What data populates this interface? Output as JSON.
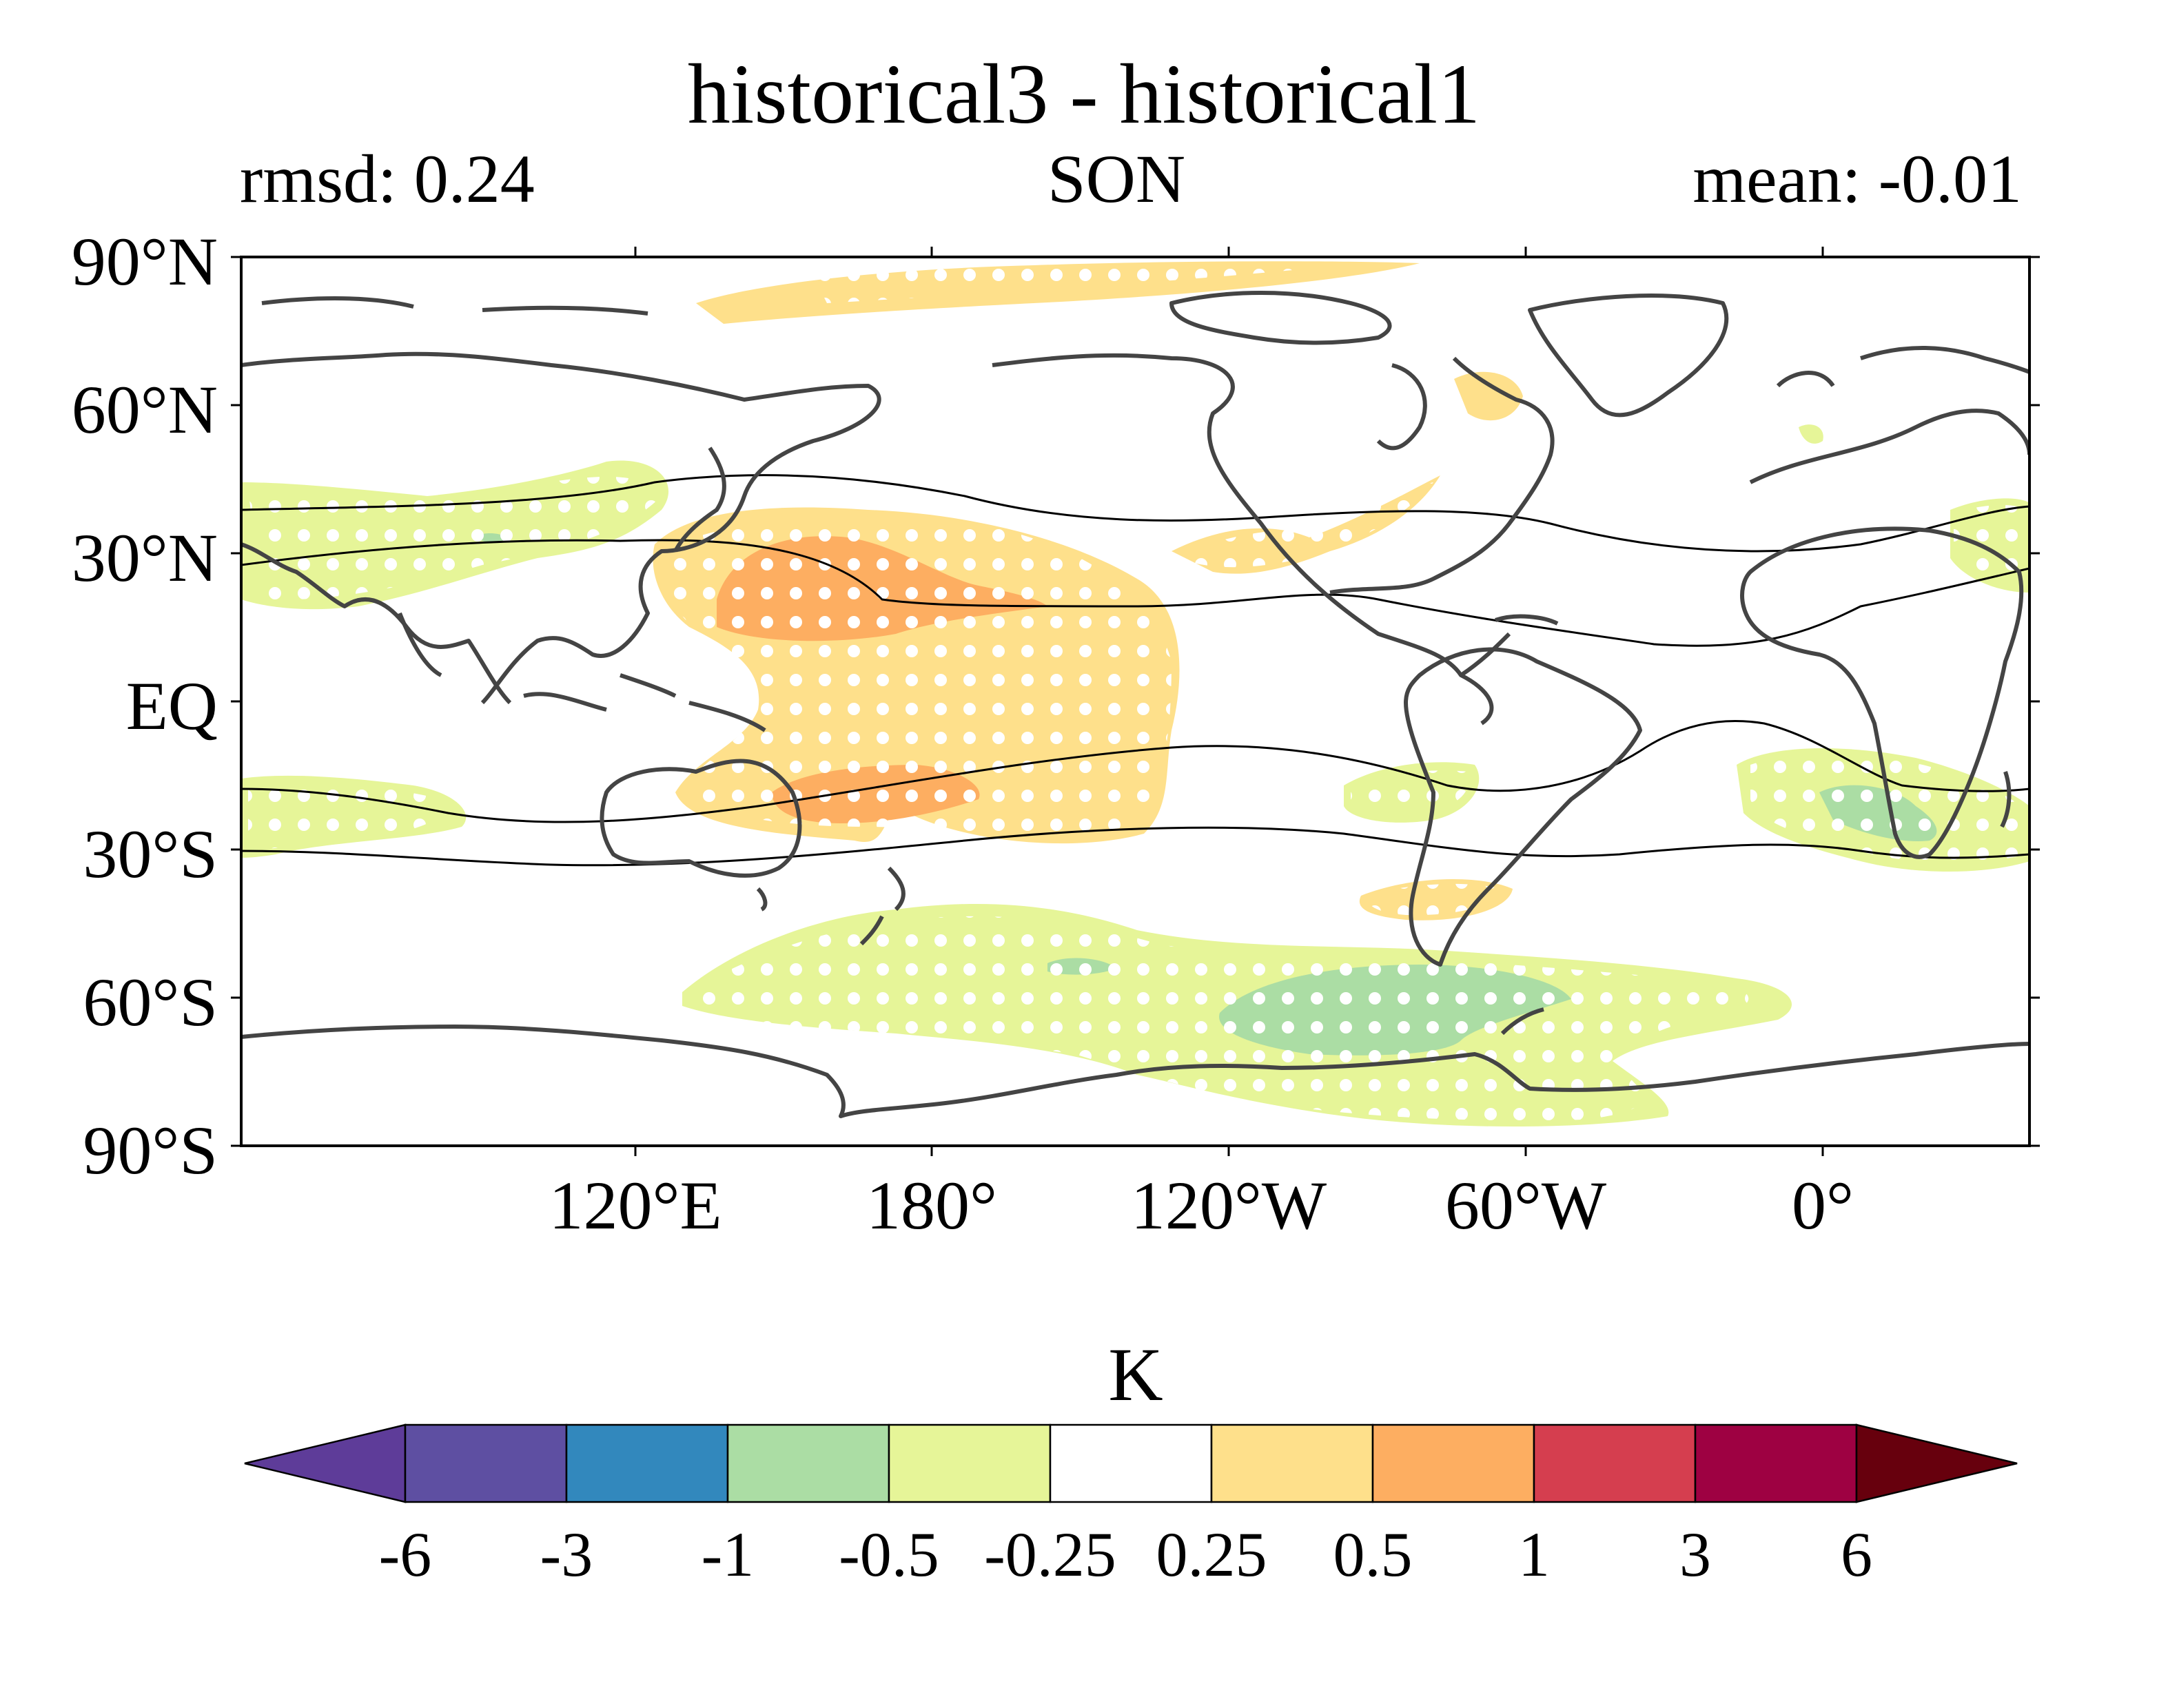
{
  "title": "historical3 - historical1",
  "stats": {
    "rmsd": "rmsd: 0.24",
    "season": "SON",
    "mean": "mean: -0.01"
  },
  "map": {
    "projection": "equirectangular, centered on 180°",
    "lat_ticks": [
      "90°N",
      "60°N",
      "30°N",
      "EQ",
      "30°S",
      "60°S",
      "90°S"
    ],
    "lon_ticks": [
      "120°E",
      "180°",
      "120°W",
      "60°W",
      "0°"
    ],
    "coastline_color": "#444444",
    "stippling": "white dots over significant regions"
  },
  "colorbar": {
    "label": "K",
    "levels": [
      "-6",
      "-3",
      "-1",
      "-0.5",
      "-0.25",
      "0.25",
      "0.5",
      "1",
      "3",
      "6"
    ],
    "colors": [
      "#5e3c99",
      "#5e4fa2",
      "#3288bd",
      "#abdda4",
      "#e6f598",
      "#ffffff",
      "#fee08b",
      "#fdae61",
      "#d53e4f",
      "#9e0142",
      "#67000d"
    ]
  }
}
